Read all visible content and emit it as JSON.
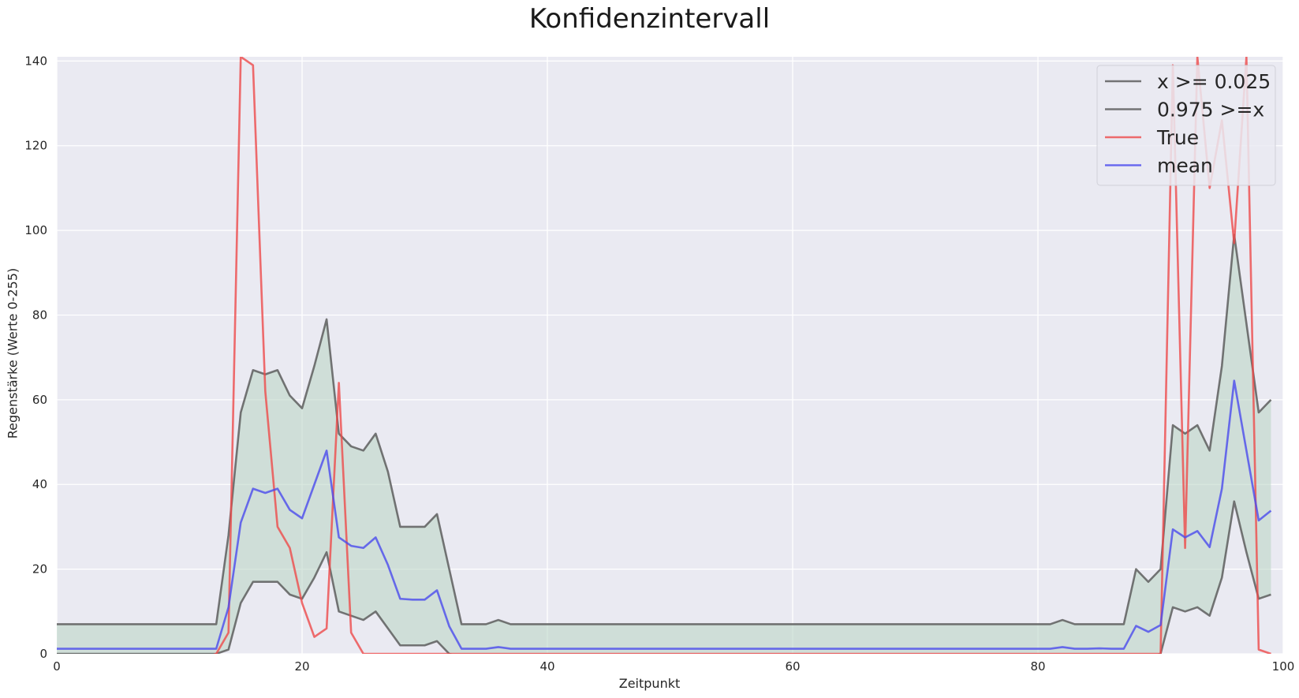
{
  "chart_data": {
    "type": "line",
    "title": "Konfidenzintervall",
    "xlabel": "Zeitpunkt",
    "ylabel": "Regenstärke (Werte 0-255)",
    "xlim": [
      0,
      100
    ],
    "ylim": [
      0,
      141
    ],
    "xticks": [
      0,
      20,
      40,
      60,
      80,
      100
    ],
    "yticks": [
      0,
      20,
      40,
      60,
      80,
      100,
      120,
      140
    ],
    "grid": true,
    "legend_position": "top-right",
    "fill_between": {
      "lower_series": "x >= 0.025",
      "upper_series": "0.975 >=x",
      "color": "#b8d4c2"
    },
    "x": [
      0,
      1,
      2,
      3,
      4,
      5,
      6,
      7,
      8,
      9,
      10,
      11,
      12,
      13,
      14,
      15,
      16,
      17,
      18,
      19,
      20,
      21,
      22,
      23,
      24,
      25,
      26,
      27,
      28,
      29,
      30,
      31,
      32,
      33,
      34,
      35,
      36,
      37,
      38,
      39,
      40,
      41,
      42,
      43,
      44,
      45,
      46,
      47,
      48,
      49,
      50,
      51,
      52,
      53,
      54,
      55,
      56,
      57,
      58,
      59,
      60,
      61,
      62,
      63,
      64,
      65,
      66,
      67,
      68,
      69,
      70,
      71,
      72,
      73,
      74,
      75,
      76,
      77,
      78,
      79,
      80,
      81,
      82,
      83,
      84,
      85,
      86,
      87,
      88,
      89,
      90,
      91,
      92,
      93,
      94,
      95,
      96,
      97,
      98,
      99
    ],
    "series": [
      {
        "name": "x >= 0.025",
        "color": "#555555",
        "values": [
          0,
          0,
          0,
          0,
          0,
          0,
          0,
          0,
          0,
          0,
          0,
          0,
          0,
          0,
          1,
          12,
          17,
          17,
          17,
          14,
          13,
          18,
          24,
          10,
          9,
          8,
          10,
          6,
          2,
          2,
          2,
          3,
          0,
          -1,
          -1,
          -1,
          -1,
          -1,
          -1,
          -1,
          -1,
          -1,
          -1,
          -1,
          -1,
          -1,
          -1,
          -1,
          -1,
          -1,
          -1,
          -1,
          -1,
          -1,
          -1,
          -1,
          -1,
          -1,
          -1,
          -1,
          -1,
          -1,
          -1,
          -1,
          -1,
          -1,
          -1,
          -1,
          -1,
          -1,
          -1,
          -1,
          -1,
          -1,
          -1,
          -1,
          -1,
          -1,
          -1,
          -1,
          -1,
          -1,
          -1,
          -1,
          -1,
          -1,
          -1,
          -1,
          -1,
          -1,
          0,
          11,
          10,
          11,
          9,
          18,
          36,
          24,
          13,
          14
        ]
      },
      {
        "name": "0.975 >=x",
        "color": "#555555",
        "values": [
          7,
          7,
          7,
          7,
          7,
          7,
          7,
          7,
          7,
          7,
          7,
          7,
          7,
          7,
          28,
          57,
          67,
          66,
          67,
          61,
          58,
          68,
          79,
          52,
          49,
          48,
          52,
          43,
          30,
          30,
          30,
          33,
          20,
          7,
          7,
          7,
          8,
          7,
          7,
          7,
          7,
          7,
          7,
          7,
          7,
          7,
          7,
          7,
          7,
          7,
          7,
          7,
          7,
          7,
          7,
          7,
          7,
          7,
          7,
          7,
          7,
          7,
          7,
          7,
          7,
          7,
          7,
          7,
          7,
          7,
          7,
          7,
          7,
          7,
          7,
          7,
          7,
          7,
          7,
          7,
          7,
          7,
          8,
          7,
          7,
          7,
          7,
          7,
          20,
          17,
          20,
          54,
          52,
          54,
          48,
          68,
          99,
          78,
          57,
          60
        ]
      },
      {
        "name": "True",
        "color": "#ee4a4a",
        "values": [
          -1,
          -1,
          -1,
          -1,
          -1,
          -1,
          -1,
          -1,
          -1,
          -1,
          -1,
          -1,
          -1,
          0,
          5,
          141,
          139,
          62,
          30,
          25,
          12,
          4,
          6,
          64,
          5,
          0,
          0,
          0,
          0,
          0,
          0,
          0,
          0,
          0,
          0,
          0,
          0,
          0,
          0,
          0,
          0,
          0,
          0,
          0,
          0,
          0,
          0,
          0,
          0,
          0,
          0,
          0,
          0,
          0,
          0,
          0,
          0,
          0,
          0,
          0,
          0,
          0,
          0,
          0,
          0,
          0,
          0,
          0,
          0,
          0,
          0,
          0,
          0,
          0,
          0,
          0,
          0,
          0,
          0,
          0,
          0,
          0,
          0,
          0,
          0,
          0,
          0,
          0,
          0,
          0,
          0,
          139,
          25,
          141,
          110,
          126,
          97,
          141,
          1,
          0
        ]
      },
      {
        "name": "mean",
        "color": "#4a4aee",
        "values": [
          1.2,
          1.2,
          1.2,
          1.2,
          1.2,
          1.2,
          1.2,
          1.2,
          1.2,
          1.2,
          1.2,
          1.2,
          1.2,
          1.2,
          11,
          31,
          39,
          38,
          39,
          34,
          32,
          40,
          48,
          27.5,
          25.5,
          25,
          27.5,
          21,
          13,
          12.8,
          12.8,
          15,
          6.5,
          1.2,
          1.2,
          1.2,
          1.6,
          1.2,
          1.2,
          1.2,
          1.2,
          1.2,
          1.2,
          1.2,
          1.2,
          1.2,
          1.2,
          1.2,
          1.2,
          1.2,
          1.2,
          1.2,
          1.2,
          1.2,
          1.2,
          1.2,
          1.2,
          1.2,
          1.2,
          1.2,
          1.2,
          1.2,
          1.2,
          1.2,
          1.2,
          1.2,
          1.2,
          1.2,
          1.2,
          1.2,
          1.2,
          1.2,
          1.2,
          1.2,
          1.2,
          1.2,
          1.2,
          1.2,
          1.2,
          1.2,
          1.2,
          1.2,
          1.6,
          1.2,
          1.2,
          1.3,
          1.2,
          1.2,
          6.6,
          5.2,
          6.8,
          29.4,
          27.5,
          29,
          25.2,
          39,
          64.5,
          48,
          31.5,
          33.8
        ]
      }
    ]
  }
}
